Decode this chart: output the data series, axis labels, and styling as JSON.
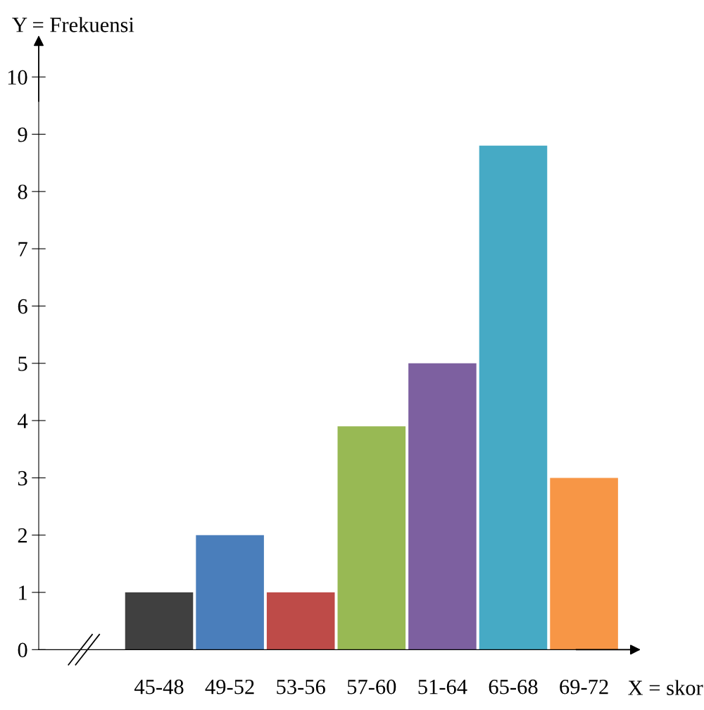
{
  "chart_data": {
    "type": "bar",
    "xlabel": "X = skor",
    "ylabel": "Y = Frekuensi",
    "categories": [
      "45-48",
      "49-52",
      "53-56",
      "57-60",
      "51-64",
      "65-68",
      "69-72"
    ],
    "values": [
      1,
      2,
      1,
      3.9,
      5,
      8.8,
      3
    ],
    "colors": [
      "#404040",
      "#4a7ebb",
      "#be4b48",
      "#98b954",
      "#7d60a0",
      "#46aac5",
      "#f79646"
    ],
    "ylim": [
      0,
      10.6
    ],
    "yticks": [
      0,
      1,
      2,
      3,
      4,
      5,
      6,
      7,
      8,
      9,
      10
    ],
    "grid": false,
    "legend": false
  }
}
